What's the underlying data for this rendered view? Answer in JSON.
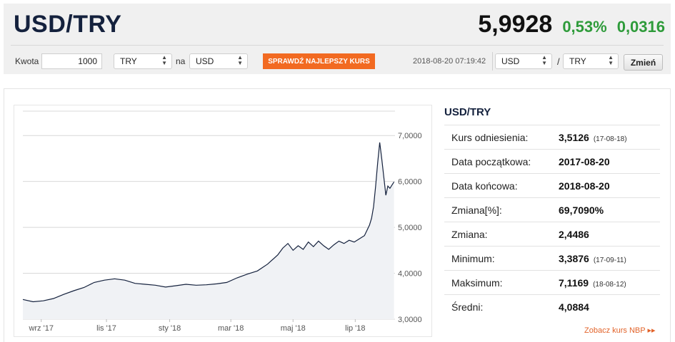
{
  "header": {
    "pair": "USD/TRY",
    "rate": "5,9928",
    "change_pct": "0,53%",
    "change_abs": "0,0316"
  },
  "controls": {
    "amount_label": "Kwota",
    "amount_value": "1000",
    "from_currency": "TRY",
    "to_label": "na",
    "to_currency": "USD",
    "cta_label": "SPRAWDŹ NAJLEPSZY KURS",
    "timestamp": "2018-08-20 07:19:42",
    "pair_base": "USD",
    "pair_slash": "/",
    "pair_quote": "TRY",
    "change_button": "Zmień"
  },
  "stats": {
    "title": "USD/TRY",
    "rows": [
      {
        "label": "Kurs odniesienia:",
        "value": "3,5126",
        "date": "(17-08-18)"
      },
      {
        "label": "Data początkowa:",
        "value": "2017-08-20",
        "date": ""
      },
      {
        "label": "Data końcowa:",
        "value": "2018-08-20",
        "date": ""
      },
      {
        "label": "Zmiana[%]:",
        "value": "69,7090%",
        "date": ""
      },
      {
        "label": "Zmiana:",
        "value": "2,4486",
        "date": ""
      },
      {
        "label": "Minimum:",
        "value": "3,3876",
        "date": "(17-09-11)"
      },
      {
        "label": "Maksimum:",
        "value": "7,1169",
        "date": "(18-08-12)"
      },
      {
        "label": "Średni:",
        "value": "4,0884",
        "date": ""
      }
    ],
    "link": "Zobacz kurs NBP ▸▸"
  },
  "colors": {
    "accent_orange": "#f26a21",
    "positive_green": "#2e9b3a",
    "line_navy": "#14213d"
  },
  "chart_data": {
    "type": "area",
    "x_ticks": [
      "wrz '17",
      "lis '17",
      "sty '18",
      "mar '18",
      "maj '18",
      "lip '18"
    ],
    "y_ticks": [
      "3,0000",
      "4,0000",
      "5,0000",
      "6,0000",
      "7,0000"
    ],
    "ylim": [
      3.0,
      7.5
    ],
    "xlim": [
      0,
      365
    ],
    "grid": "horizontal",
    "series": [
      {
        "x": [
          0,
          10,
          20,
          30,
          40,
          50,
          60,
          70,
          80,
          90,
          100,
          110,
          120,
          130,
          140,
          150,
          160,
          170,
          180,
          190,
          200,
          210,
          220,
          230,
          240,
          250,
          255,
          260,
          265,
          270,
          275,
          280,
          285,
          290,
          295,
          300,
          305,
          310,
          315,
          320,
          325,
          330,
          335,
          340,
          342,
          344,
          346,
          348,
          350,
          352,
          354,
          356,
          358,
          360,
          362,
          364
        ],
        "y": [
          3.43,
          3.38,
          3.4,
          3.45,
          3.54,
          3.62,
          3.69,
          3.8,
          3.85,
          3.88,
          3.85,
          3.78,
          3.76,
          3.74,
          3.7,
          3.73,
          3.76,
          3.74,
          3.75,
          3.77,
          3.8,
          3.9,
          3.98,
          4.05,
          4.2,
          4.4,
          4.55,
          4.65,
          4.5,
          4.6,
          4.52,
          4.68,
          4.58,
          4.7,
          4.6,
          4.52,
          4.62,
          4.7,
          4.65,
          4.72,
          4.68,
          4.75,
          4.82,
          5.05,
          5.2,
          5.45,
          5.9,
          6.4,
          6.85,
          6.5,
          6.1,
          5.7,
          5.9,
          5.85,
          5.92,
          5.99
        ]
      }
    ]
  }
}
